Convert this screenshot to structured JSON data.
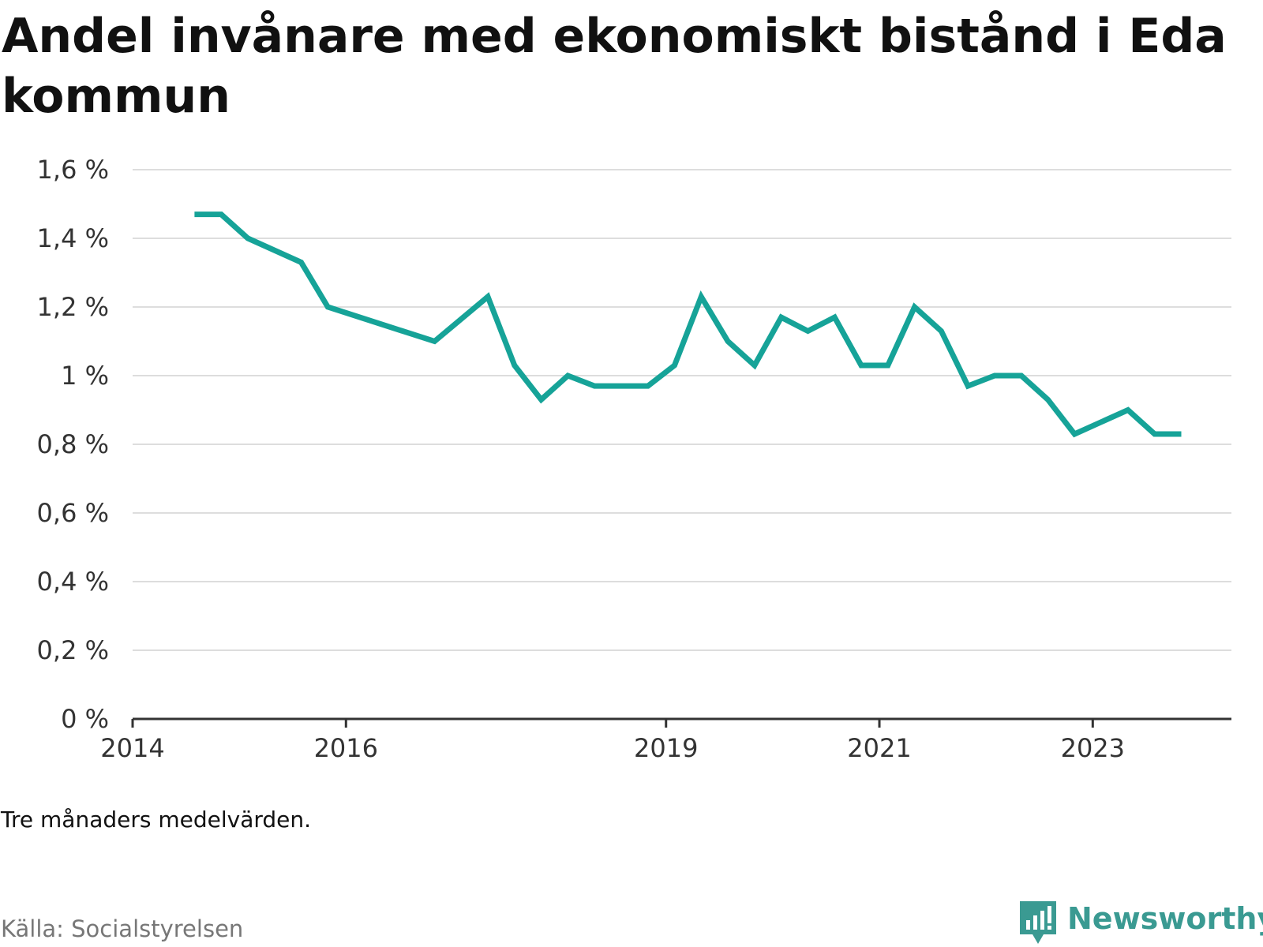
{
  "title": "Andel invånare med ekonomiskt bistånd i Eda kommun",
  "note": "Tre månaders medelvärden.",
  "source": "Källa: Socialstyrelsen",
  "brand": {
    "name": "Newsworthy",
    "icon": "newsworthy-logo-icon",
    "color": "#3a9a92"
  },
  "colors": {
    "line": "#16a398",
    "grid": "#dddddd",
    "axis": "#333333"
  },
  "chart_data": {
    "type": "line",
    "title": "Andel invånare med ekonomiskt bistånd i Eda kommun",
    "xlabel": "",
    "ylabel": "",
    "grid": true,
    "legend": "none",
    "xlim": [
      2014.0,
      2024.3
    ],
    "ylim": [
      0,
      1.6
    ],
    "x_ticks": [
      2014,
      2016,
      2019,
      2021,
      2023
    ],
    "x_tick_labels": [
      "2014",
      "2016",
      "2019",
      "2021",
      "2023"
    ],
    "y_ticks": [
      0,
      0.2,
      0.4,
      0.6,
      0.8,
      1.0,
      1.2,
      1.4,
      1.6
    ],
    "y_tick_labels": [
      "0 %",
      "0,2 %",
      "0,4 %",
      "0,6 %",
      "0,8 %",
      "1 %",
      "1,2 %",
      "1,4 %",
      "1,6 %"
    ],
    "series": [
      {
        "name": "",
        "x": [
          2014.58,
          2014.83,
          2015.08,
          2015.58,
          2015.83,
          2016.83,
          2017.33,
          2017.58,
          2017.83,
          2018.08,
          2018.33,
          2018.83,
          2019.08,
          2019.33,
          2019.58,
          2019.83,
          2020.08,
          2020.33,
          2020.58,
          2020.83,
          2021.08,
          2021.33,
          2021.58,
          2021.83,
          2022.08,
          2022.33,
          2022.58,
          2022.83,
          2023.33,
          2023.58,
          2023.83
        ],
        "values": [
          1.47,
          1.47,
          1.4,
          1.33,
          1.2,
          1.1,
          1.23,
          1.03,
          0.93,
          1.0,
          0.97,
          0.97,
          1.03,
          1.23,
          1.1,
          1.03,
          1.17,
          1.13,
          1.17,
          1.03,
          1.03,
          1.2,
          1.13,
          0.97,
          1.0,
          1.0,
          0.93,
          0.83,
          0.9,
          0.83,
          0.83
        ]
      }
    ]
  }
}
